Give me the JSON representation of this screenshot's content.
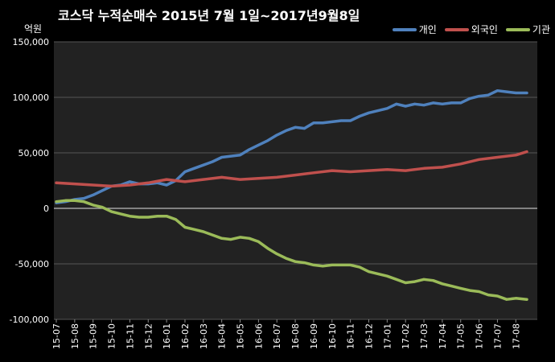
{
  "chart_data": {
    "type": "line",
    "title": "코스닥  누적순매수 2015년 7월 1일~2017년9월8일",
    "ylabel": "억원",
    "ylim": [
      -100000,
      150000
    ],
    "yticks": [
      -100000,
      -50000,
      0,
      50000,
      100000,
      150000
    ],
    "ytick_labels": [
      "-100,000",
      "-50,000",
      "0",
      "50,000",
      "100,000",
      "150,000"
    ],
    "grid": true,
    "legend_position": "top-right",
    "categories": [
      "15-07",
      "15-08",
      "15-09",
      "15-10",
      "15-11",
      "15-12",
      "16-01",
      "16-02",
      "16-03",
      "16-04",
      "16-05",
      "16-06",
      "16-07",
      "16-08",
      "16-09",
      "16-10",
      "16-11",
      "16-12",
      "17-01",
      "17-02",
      "17-03",
      "17-04",
      "17-05",
      "17-06",
      "17-07",
      "17-08"
    ],
    "series": [
      {
        "name": "개인",
        "color": "#4f81bd",
        "x": [
          0,
          0.5,
          1,
          1.5,
          2,
          2.5,
          3,
          3.5,
          4,
          4.5,
          5,
          5.5,
          6,
          6.5,
          7,
          7.5,
          8,
          8.5,
          9,
          9.5,
          10,
          10.5,
          11,
          11.5,
          12,
          12.5,
          13,
          13.5,
          14,
          14.5,
          15,
          15.5,
          16,
          16.5,
          17,
          17.5,
          18,
          18.5,
          19,
          19.5,
          20,
          20.5,
          21,
          21.5,
          22,
          22.5,
          23,
          23.5,
          24,
          24.5,
          25,
          25.6
        ],
        "values": [
          5000,
          6000,
          8000,
          9000,
          12000,
          16000,
          20000,
          21000,
          24000,
          22000,
          22000,
          23000,
          21000,
          25000,
          33000,
          36000,
          39000,
          42000,
          46000,
          47000,
          48000,
          53000,
          57000,
          61000,
          66000,
          70000,
          73000,
          72000,
          77000,
          77000,
          78000,
          79000,
          79000,
          83000,
          86000,
          88000,
          90000,
          94000,
          92000,
          94000,
          93000,
          95000,
          94000,
          95000,
          95000,
          99000,
          101000,
          102000,
          106000,
          105000,
          104000,
          104000
        ]
      },
      {
        "name": "외국인",
        "color": "#c0504d",
        "x": [
          0,
          1,
          2,
          3,
          4,
          5,
          6,
          7,
          8,
          9,
          10,
          11,
          12,
          13,
          14,
          15,
          16,
          17,
          18,
          19,
          20,
          21,
          22,
          23,
          24,
          25,
          25.6
        ],
        "values": [
          23000,
          22000,
          21000,
          20000,
          21000,
          23000,
          26000,
          24000,
          26000,
          28000,
          26000,
          27000,
          28000,
          30000,
          32000,
          34000,
          33000,
          34000,
          35000,
          34000,
          36000,
          37000,
          40000,
          44000,
          46000,
          48000,
          51000
        ]
      },
      {
        "name": "기관",
        "color": "#9bbb59",
        "x": [
          0,
          0.5,
          1,
          1.5,
          2,
          2.5,
          3,
          3.5,
          4,
          4.5,
          5,
          5.5,
          6,
          6.5,
          7,
          7.5,
          8,
          8.5,
          9,
          9.5,
          10,
          10.5,
          11,
          11.5,
          12,
          12.5,
          13,
          13.5,
          14,
          14.5,
          15,
          15.5,
          16,
          16.5,
          17,
          17.5,
          18,
          18.5,
          19,
          19.5,
          20,
          20.5,
          21,
          21.5,
          22,
          22.5,
          23,
          23.5,
          24,
          24.5,
          25,
          25.6
        ],
        "values": [
          6000,
          7000,
          7000,
          6000,
          3000,
          1000,
          -3000,
          -5000,
          -7000,
          -8000,
          -8000,
          -7000,
          -7000,
          -10000,
          -17000,
          -19000,
          -21000,
          -24000,
          -27000,
          -28000,
          -26000,
          -27000,
          -30000,
          -36000,
          -41000,
          -45000,
          -48000,
          -49000,
          -51000,
          -52000,
          -51000,
          -51000,
          -51000,
          -53000,
          -57000,
          -59000,
          -61000,
          -64000,
          -67000,
          -66000,
          -64000,
          -65000,
          -68000,
          -70000,
          -72000,
          -74000,
          -75000,
          -78000,
          -79000,
          -82000,
          -81000,
          -82000
        ]
      }
    ]
  }
}
